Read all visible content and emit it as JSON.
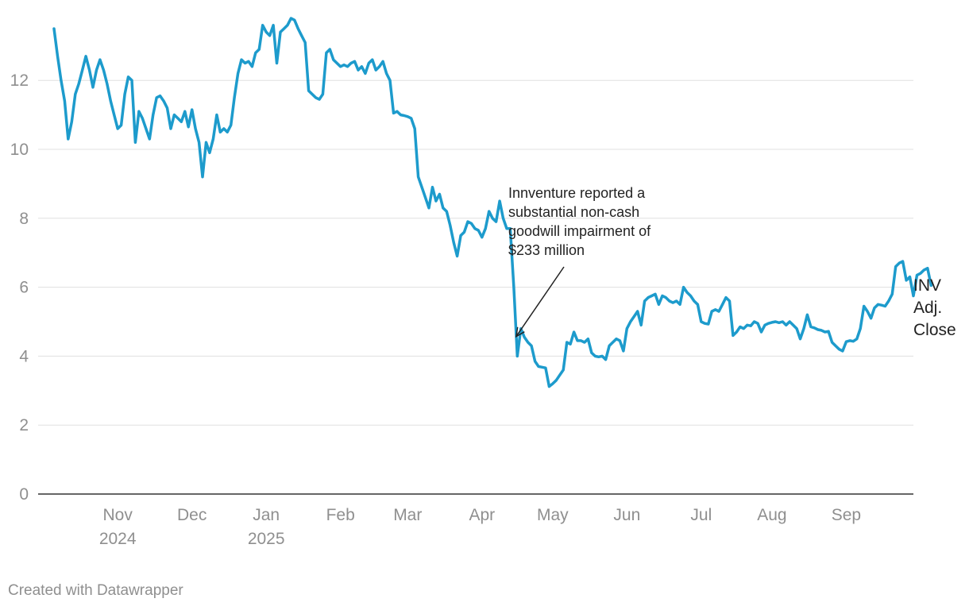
{
  "chart_data": {
    "type": "line",
    "title": "",
    "xlabel": "",
    "ylabel": "",
    "ylim": [
      0,
      14
    ],
    "y_ticks": [
      0,
      2,
      4,
      6,
      8,
      10,
      12
    ],
    "x_ticks": [
      {
        "index": 18,
        "label": [
          "Nov",
          "2024"
        ]
      },
      {
        "index": 39,
        "label": [
          "Dec"
        ]
      },
      {
        "index": 60,
        "label": [
          "Jan",
          "2025"
        ]
      },
      {
        "index": 81,
        "label": [
          "Feb"
        ]
      },
      {
        "index": 100,
        "label": [
          "Mar"
        ]
      },
      {
        "index": 121,
        "label": [
          "Apr"
        ]
      },
      {
        "index": 141,
        "label": [
          "May"
        ]
      },
      {
        "index": 162,
        "label": [
          "Jun"
        ]
      },
      {
        "index": 183,
        "label": [
          "Jul"
        ]
      },
      {
        "index": 203,
        "label": [
          "Aug"
        ]
      },
      {
        "index": 224,
        "label": [
          "Sep"
        ]
      }
    ],
    "x_domain": [
      -4.5,
      243
    ],
    "series": [
      {
        "name": "INV Adj. Close",
        "label_lines": [
          "INV",
          "Adj.",
          "Close"
        ],
        "values": [
          13.5,
          12.7,
          12.0,
          11.4,
          10.3,
          10.8,
          11.6,
          11.9,
          12.3,
          12.7,
          12.3,
          11.8,
          12.3,
          12.6,
          12.3,
          11.9,
          11.4,
          11.0,
          10.6,
          10.7,
          11.6,
          12.1,
          12.0,
          10.2,
          11.1,
          10.9,
          10.6,
          10.3,
          11.0,
          11.5,
          11.55,
          11.4,
          11.2,
          10.6,
          11.0,
          10.9,
          10.8,
          11.1,
          10.65,
          11.15,
          10.6,
          10.2,
          9.2,
          10.2,
          9.9,
          10.3,
          11.0,
          10.5,
          10.6,
          10.5,
          10.7,
          11.5,
          12.2,
          12.6,
          12.5,
          12.55,
          12.4,
          12.8,
          12.9,
          13.6,
          13.4,
          13.3,
          13.6,
          12.5,
          13.4,
          13.5,
          13.6,
          13.8,
          13.75,
          13.5,
          13.3,
          13.1,
          11.7,
          11.6,
          11.5,
          11.45,
          11.6,
          12.8,
          12.9,
          12.6,
          12.5,
          12.4,
          12.45,
          12.4,
          12.5,
          12.55,
          12.3,
          12.4,
          12.2,
          12.5,
          12.6,
          12.3,
          12.4,
          12.55,
          12.2,
          12.0,
          11.05,
          11.1,
          11.0,
          10.98,
          10.95,
          10.9,
          10.6,
          9.2,
          8.9,
          8.6,
          8.3,
          8.9,
          8.5,
          8.7,
          8.3,
          8.2,
          7.8,
          7.3,
          6.9,
          7.5,
          7.6,
          7.9,
          7.85,
          7.7,
          7.65,
          7.45,
          7.7,
          8.2,
          8.0,
          7.9,
          8.5,
          8.0,
          7.7,
          7.7,
          6.0,
          4.0,
          4.8,
          4.55,
          4.4,
          4.3,
          3.85,
          3.7,
          3.68,
          3.66,
          3.12,
          3.2,
          3.3,
          3.45,
          3.6,
          4.4,
          4.35,
          4.7,
          4.45,
          4.45,
          4.4,
          4.5,
          4.1,
          4.0,
          3.98,
          4.0,
          3.9,
          4.3,
          4.4,
          4.5,
          4.45,
          4.15,
          4.8,
          5.0,
          5.15,
          5.3,
          4.9,
          5.6,
          5.7,
          5.75,
          5.8,
          5.5,
          5.75,
          5.7,
          5.6,
          5.55,
          5.6,
          5.5,
          6.0,
          5.85,
          5.75,
          5.6,
          5.5,
          5.0,
          4.95,
          4.93,
          5.3,
          5.35,
          5.3,
          5.5,
          5.7,
          5.6,
          4.6,
          4.7,
          4.85,
          4.8,
          4.9,
          4.88,
          5.0,
          4.95,
          4.7,
          4.9,
          4.95,
          4.98,
          5.0,
          4.97,
          5.0,
          4.9,
          5.0,
          4.9,
          4.8,
          4.5,
          4.8,
          5.2,
          4.85,
          4.82,
          4.77,
          4.75,
          4.7,
          4.72,
          4.4,
          4.3,
          4.2,
          4.15,
          4.42,
          4.45,
          4.43,
          4.5,
          4.8,
          5.45,
          5.3,
          5.1,
          5.4,
          5.5,
          5.48,
          5.45,
          5.6,
          5.8,
          6.6,
          6.7,
          6.75,
          6.2,
          6.3,
          5.75,
          6.35,
          6.4,
          6.5,
          6.55,
          6.05
        ]
      }
    ],
    "annotation": {
      "text_lines": [
        "Innventure reported a",
        "substantial non-cash",
        "goodwill impairment of",
        "$233 million"
      ],
      "target_index": 130,
      "target_value": 4.8
    }
  },
  "credit": "Created with Datawrapper",
  "colors": {
    "line": "#1d9bcc",
    "grid": "#e0e0e0",
    "axis_text": "#8f8f8f",
    "label_text": "#222222"
  }
}
